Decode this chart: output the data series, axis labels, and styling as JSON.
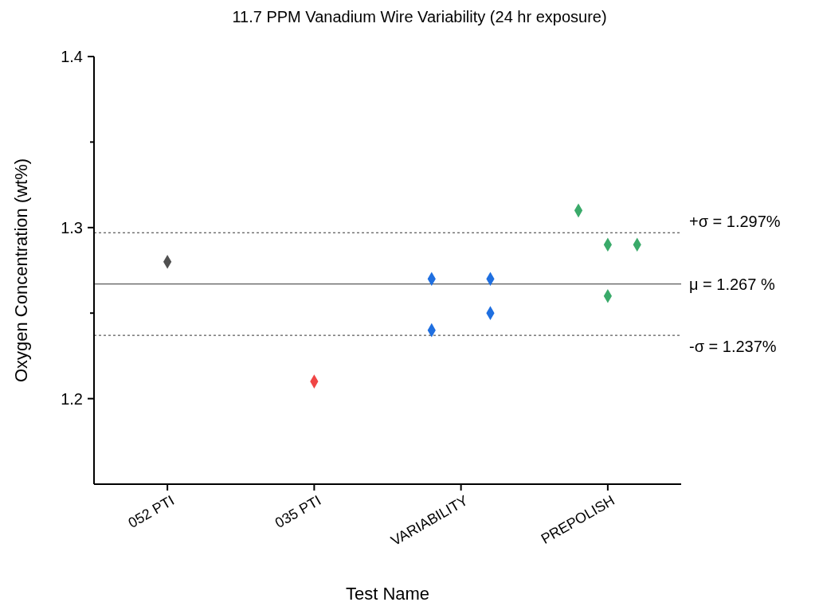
{
  "chart_data": {
    "type": "scatter",
    "title": "11.7 PPM Vanadium Wire Variability (24 hr exposure)",
    "xlabel": "Test Name",
    "ylabel": "Oxygen Concentration (wt%)",
    "categories": [
      null,
      null,
      "052 PTI",
      null,
      null,
      null,
      null,
      "035 PTI",
      null,
      null,
      null,
      null,
      "VARIABILITY",
      null,
      null,
      null,
      null,
      "PREPOLISH",
      null,
      null
    ],
    "ylim": [
      1.15,
      1.4
    ],
    "yticks": [
      1.2,
      {
        "value": 1.25,
        "label": null
      },
      1.3,
      {
        "value": 1.35,
        "label": null
      },
      1.4
    ],
    "series": [
      {
        "color": "#505050",
        "values": [
          null,
          null,
          1.28,
          null,
          null,
          null,
          null,
          null,
          null,
          null,
          null,
          null,
          null,
          null,
          null,
          null,
          null,
          null,
          null,
          null
        ]
      },
      {
        "color": "#f04545",
        "values": [
          null,
          null,
          null,
          null,
          null,
          null,
          null,
          1.21,
          null,
          null,
          null,
          null,
          null,
          null,
          null,
          null,
          null,
          null,
          null,
          null
        ]
      },
      {
        "color": "#1f6fe0",
        "values": [
          null,
          null,
          null,
          null,
          null,
          null,
          null,
          null,
          null,
          null,
          null,
          1.27,
          null,
          1.27,
          null,
          null,
          null,
          null,
          null,
          null
        ]
      },
      {
        "color": "#1f6fe0",
        "values": [
          null,
          null,
          null,
          null,
          null,
          null,
          null,
          null,
          null,
          null,
          null,
          1.24,
          null,
          1.25,
          null,
          null,
          null,
          null,
          null,
          null
        ]
      },
      {
        "color": "#3aaa6a",
        "values": [
          null,
          null,
          null,
          null,
          null,
          null,
          null,
          null,
          null,
          null,
          null,
          null,
          null,
          null,
          null,
          null,
          1.31,
          1.29,
          1.29,
          null
        ]
      },
      {
        "color": "#3aaa6a",
        "values": [
          null,
          null,
          null,
          null,
          null,
          null,
          null,
          null,
          null,
          null,
          null,
          null,
          null,
          null,
          null,
          null,
          null,
          1.26,
          null,
          null
        ]
      }
    ],
    "ref_lines": [
      {
        "axis": "y",
        "value": 1.297,
        "label": "+σ = 1.297%",
        "line_style": "dotted"
      },
      {
        "axis": "y",
        "value": 1.267,
        "label": "μ = 1.267 %",
        "line_style": "solid"
      },
      {
        "axis": "y",
        "value": 1.237,
        "label": "-σ = 1.237%",
        "line_style": "dotted"
      }
    ],
    "marker": "diamond",
    "grid": false
  }
}
